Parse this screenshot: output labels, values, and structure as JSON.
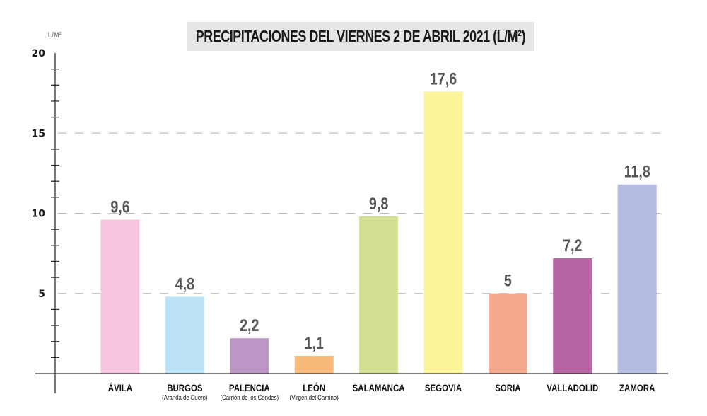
{
  "chart_data": {
    "type": "bar",
    "title": "PRECIPITACIONES DEL VIERNES 2 DE ABRIL 2021 (L/M²)",
    "xlabel": "",
    "ylabel": "L/M²",
    "ylim": [
      0,
      20
    ],
    "yticks": [
      5,
      10,
      15,
      20
    ],
    "minor_tick_step": 1,
    "grid": true,
    "grid_style": "dashed",
    "grid_values": [
      5,
      10,
      15
    ],
    "categories": [
      "ÁVILA",
      "BURGOS",
      "PALENCIA",
      "LEÓN",
      "SALAMANCA",
      "SEGOVIA",
      "SORIA",
      "VALLADOLID",
      "ZAMORA"
    ],
    "subcategories": [
      "",
      "(Aranda de Duero)",
      "(Carrión de los Condes)",
      "(Virgen del Camino)",
      "",
      "",
      "",
      "",
      ""
    ],
    "values": [
      9.6,
      4.8,
      2.2,
      1.1,
      9.8,
      17.6,
      5,
      7.2,
      11.8
    ],
    "value_labels": [
      "9,6",
      "4,8",
      "2,2",
      "1,1",
      "9,8",
      "17,6",
      "5",
      "7,2",
      "11,8"
    ],
    "colors": [
      "#f6c6de",
      "#bde3f7",
      "#bd97c6",
      "#f8b97b",
      "#d3df92",
      "#fdf59a",
      "#f4a98e",
      "#b964a3",
      "#b4bbe0"
    ]
  },
  "colors": {
    "title_background": "#e6e6e6",
    "axis": "#333333",
    "grid": "#bdbdbd",
    "value_label": "#555555"
  }
}
